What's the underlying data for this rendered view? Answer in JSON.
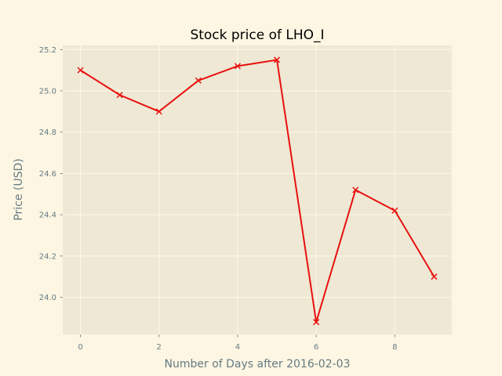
{
  "chart_data": {
    "type": "line",
    "title": "Stock price of LHO_I",
    "xlabel": "Number of Days after 2016-02-03",
    "ylabel": "Price (USD)",
    "x": [
      0,
      1,
      2,
      3,
      4,
      5,
      6,
      7,
      8,
      9
    ],
    "series": [
      {
        "values": [
          25.1,
          24.98,
          24.9,
          25.05,
          25.12,
          25.15,
          23.88,
          24.52,
          24.42,
          24.1
        ],
        "color": "#e8110f",
        "marker": "x"
      }
    ],
    "xlim": [
      -0.45,
      9.45
    ],
    "ylim": [
      23.82,
      25.22
    ],
    "xticks": [
      0,
      2,
      4,
      6,
      8
    ],
    "yticks": [
      24.0,
      24.2,
      24.4,
      24.6,
      24.8,
      25.0,
      25.2
    ],
    "xtick_labels": [
      "0",
      "2",
      "4",
      "6",
      "8"
    ],
    "ytick_labels": [
      "24.0",
      "24.2",
      "24.4",
      "24.6",
      "24.8",
      "25.0",
      "25.2"
    ],
    "grid": true,
    "colors": {
      "figure_bg": "#fdf6e3",
      "plot_bg": "#eee8d5",
      "grid": "#fdf6e3",
      "text": "#657b83"
    }
  }
}
